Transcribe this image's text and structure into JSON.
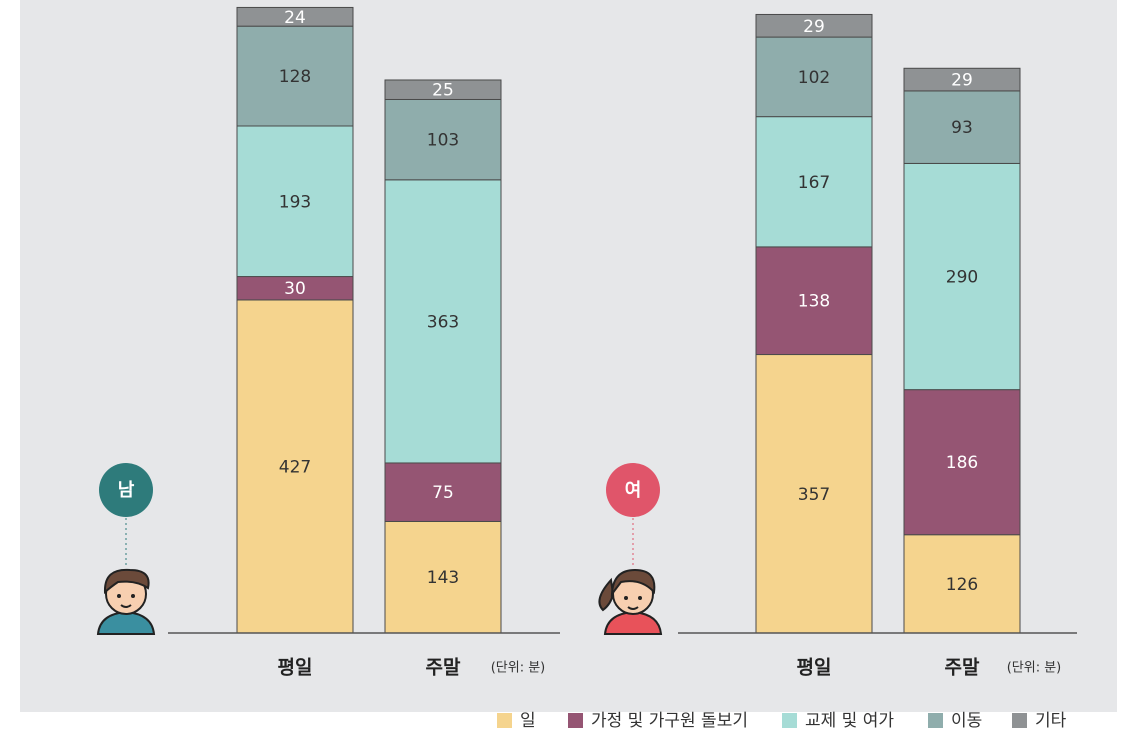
{
  "chart_data": [
    {
      "type": "bar",
      "stacked": true,
      "badge": "남",
      "badge_color": "#2e7b7b",
      "unit": "(단위: 분)",
      "categories": [
        "평일",
        "주말"
      ],
      "series": [
        {
          "name": "일",
          "color": "#f5d48e",
          "values": [
            427,
            143
          ]
        },
        {
          "name": "가정 및 가구원 돌보기",
          "color": "#955573",
          "values": [
            30,
            75
          ]
        },
        {
          "name": "교제 및 여가",
          "color": "#a6dcd6",
          "values": [
            193,
            363
          ]
        },
        {
          "name": "이동",
          "color": "#8fadac",
          "values": [
            128,
            103
          ]
        },
        {
          "name": "기타",
          "color": "#8f9294",
          "values": [
            24,
            25
          ]
        }
      ]
    },
    {
      "type": "bar",
      "stacked": true,
      "badge": "여",
      "badge_color": "#e0556a",
      "unit": "(단위: 분)",
      "categories": [
        "평일",
        "주말"
      ],
      "series": [
        {
          "color": "#f5d48e",
          "values": [
            357,
            126
          ]
        },
        {
          "color": "#955573",
          "values": [
            138,
            186
          ]
        },
        {
          "color": "#a6dcd6",
          "values": [
            167,
            290
          ]
        },
        {
          "color": "#8fadac",
          "values": [
            102,
            93
          ]
        },
        {
          "color": "#8f9294",
          "values": [
            29,
            29
          ]
        }
      ]
    }
  ]
}
